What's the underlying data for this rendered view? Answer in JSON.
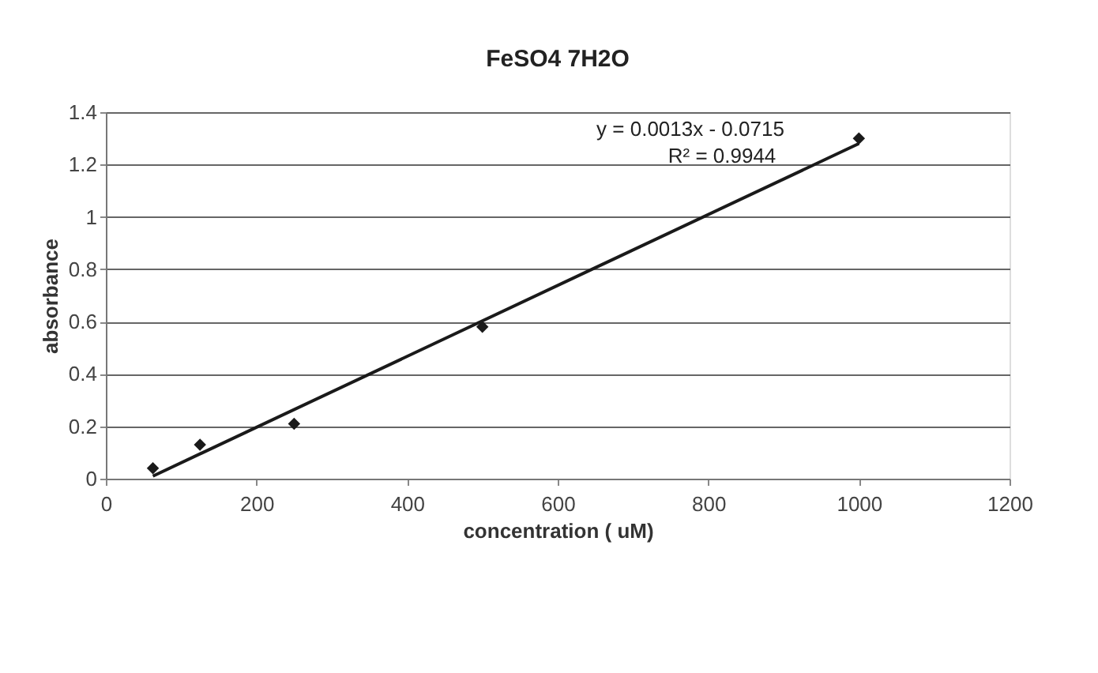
{
  "chart_data": {
    "type": "scatter",
    "title": "FeSO4 7H2O",
    "xlabel": "concentration ( uM)",
    "ylabel": "absorbance",
    "x": [
      62.5,
      125,
      250,
      500,
      1000
    ],
    "series": [
      {
        "color": "#1a1a1a",
        "marker": "diamond",
        "values": [
          0.04,
          0.13,
          0.21,
          0.58,
          1.3
        ]
      },
      {
        "type": "line",
        "color": "#1a1a1a",
        "x": [
          62.5,
          1000
        ],
        "values": [
          0.01,
          1.28
        ],
        "line_style": "solid"
      }
    ],
    "xlim": [
      0,
      1200
    ],
    "xticks": [
      0,
      200,
      400,
      600,
      800,
      1000,
      1200
    ],
    "ylim": [
      0,
      1.4
    ],
    "yticks": [
      0,
      0.2,
      0.4,
      0.6,
      0.8,
      1,
      1.2,
      1.4
    ],
    "grid": "y",
    "annotations": [
      "y = 0.0013x - 0.0715",
      "R² = 0.9944"
    ]
  }
}
